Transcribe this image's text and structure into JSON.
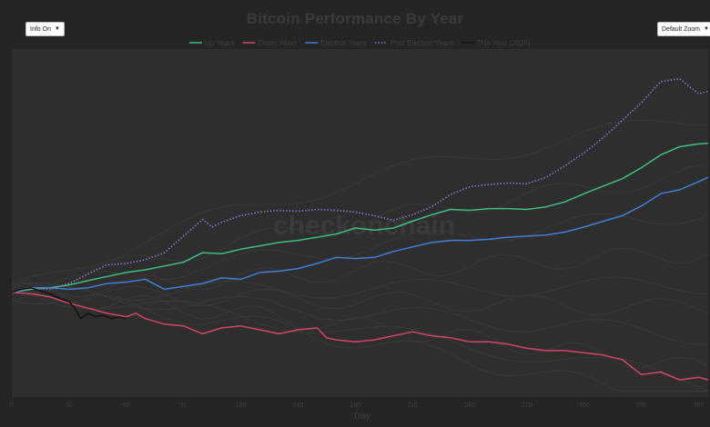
{
  "controls": {
    "info_label": "Info On",
    "zoom_label": "Default Zoom"
  },
  "watermark": "checkonchain",
  "colors": {
    "background": "#252525",
    "plot_background": "#2e2e2e",
    "up": "#3dbf7f",
    "down": "#d2456a",
    "election": "#3f7fd6",
    "post_election": "#8a72c9",
    "this_year": "#111111",
    "history": "#383838"
  },
  "chart_data": {
    "type": "line",
    "title": "Bitcoin Performance By Year",
    "xlabel": "Day",
    "ylabel": "",
    "xlim": [
      0,
      365
    ],
    "x_ticks": [
      0,
      30,
      60,
      90,
      120,
      150,
      180,
      210,
      240,
      270,
      300,
      330,
      360
    ],
    "y_scale": "log",
    "legend_position": "top-center",
    "grid": false,
    "legend": [
      "Up Years",
      "Down Years",
      "Election Years",
      "Post Election Years",
      "This Year (2026)"
    ],
    "series": [
      {
        "name": "Up Years",
        "color": "#3dbf7f",
        "style": "solid",
        "points": [
          [
            0,
            1.0
          ],
          [
            10,
            1.02
          ],
          [
            20,
            1.03
          ],
          [
            30,
            1.05
          ],
          [
            40,
            1.08
          ],
          [
            50,
            1.11
          ],
          [
            60,
            1.14
          ],
          [
            70,
            1.16
          ],
          [
            80,
            1.19
          ],
          [
            90,
            1.22
          ],
          [
            100,
            1.3
          ],
          [
            110,
            1.29
          ],
          [
            120,
            1.33
          ],
          [
            130,
            1.36
          ],
          [
            140,
            1.39
          ],
          [
            150,
            1.41
          ],
          [
            160,
            1.44
          ],
          [
            170,
            1.47
          ],
          [
            180,
            1.53
          ],
          [
            190,
            1.51
          ],
          [
            200,
            1.53
          ],
          [
            210,
            1.6
          ],
          [
            220,
            1.67
          ],
          [
            230,
            1.73
          ],
          [
            240,
            1.72
          ],
          [
            250,
            1.74
          ],
          [
            260,
            1.74
          ],
          [
            270,
            1.73
          ],
          [
            280,
            1.76
          ],
          [
            290,
            1.82
          ],
          [
            300,
            1.92
          ],
          [
            310,
            2.02
          ],
          [
            320,
            2.12
          ],
          [
            330,
            2.28
          ],
          [
            340,
            2.48
          ],
          [
            350,
            2.62
          ],
          [
            360,
            2.67
          ],
          [
            365,
            2.68
          ]
        ]
      },
      {
        "name": "Down Years",
        "color": "#d2456a",
        "style": "solid",
        "points": [
          [
            0,
            1.0
          ],
          [
            10,
            0.99
          ],
          [
            20,
            0.97
          ],
          [
            30,
            0.93
          ],
          [
            40,
            0.9
          ],
          [
            50,
            0.87
          ],
          [
            60,
            0.85
          ],
          [
            65,
            0.87
          ],
          [
            70,
            0.84
          ],
          [
            80,
            0.81
          ],
          [
            90,
            0.8
          ],
          [
            100,
            0.76
          ],
          [
            110,
            0.79
          ],
          [
            120,
            0.8
          ],
          [
            130,
            0.78
          ],
          [
            140,
            0.76
          ],
          [
            150,
            0.78
          ],
          [
            160,
            0.79
          ],
          [
            165,
            0.74
          ],
          [
            170,
            0.73
          ],
          [
            180,
            0.72
          ],
          [
            190,
            0.73
          ],
          [
            200,
            0.75
          ],
          [
            210,
            0.77
          ],
          [
            220,
            0.75
          ],
          [
            230,
            0.74
          ],
          [
            240,
            0.72
          ],
          [
            250,
            0.72
          ],
          [
            260,
            0.71
          ],
          [
            270,
            0.69
          ],
          [
            280,
            0.68
          ],
          [
            290,
            0.68
          ],
          [
            300,
            0.67
          ],
          [
            310,
            0.66
          ],
          [
            320,
            0.64
          ],
          [
            330,
            0.58
          ],
          [
            340,
            0.59
          ],
          [
            350,
            0.56
          ],
          [
            360,
            0.57
          ],
          [
            365,
            0.56
          ]
        ]
      },
      {
        "name": "Election Years",
        "color": "#3f7fd6",
        "style": "solid",
        "points": [
          [
            0,
            1.0
          ],
          [
            10,
            1.03
          ],
          [
            20,
            1.03
          ],
          [
            30,
            1.02
          ],
          [
            40,
            1.03
          ],
          [
            50,
            1.06
          ],
          [
            60,
            1.07
          ],
          [
            70,
            1.09
          ],
          [
            80,
            1.02
          ],
          [
            90,
            1.04
          ],
          [
            100,
            1.06
          ],
          [
            110,
            1.1
          ],
          [
            120,
            1.09
          ],
          [
            130,
            1.14
          ],
          [
            140,
            1.15
          ],
          [
            150,
            1.17
          ],
          [
            160,
            1.21
          ],
          [
            170,
            1.26
          ],
          [
            180,
            1.25
          ],
          [
            190,
            1.26
          ],
          [
            200,
            1.31
          ],
          [
            210,
            1.35
          ],
          [
            220,
            1.39
          ],
          [
            230,
            1.41
          ],
          [
            240,
            1.41
          ],
          [
            250,
            1.42
          ],
          [
            260,
            1.44
          ],
          [
            270,
            1.45
          ],
          [
            280,
            1.46
          ],
          [
            290,
            1.49
          ],
          [
            300,
            1.54
          ],
          [
            310,
            1.6
          ],
          [
            320,
            1.66
          ],
          [
            330,
            1.77
          ],
          [
            340,
            1.92
          ],
          [
            350,
            1.97
          ],
          [
            360,
            2.08
          ],
          [
            365,
            2.14
          ]
        ]
      },
      {
        "name": "Post Election Years",
        "color": "#8a72c9",
        "style": "dotted",
        "points": [
          [
            0,
            1.0
          ],
          [
            10,
            1.03
          ],
          [
            20,
            1.02
          ],
          [
            30,
            1.06
          ],
          [
            40,
            1.13
          ],
          [
            50,
            1.2
          ],
          [
            60,
            1.21
          ],
          [
            70,
            1.24
          ],
          [
            80,
            1.3
          ],
          [
            90,
            1.45
          ],
          [
            100,
            1.62
          ],
          [
            105,
            1.54
          ],
          [
            110,
            1.59
          ],
          [
            120,
            1.66
          ],
          [
            130,
            1.7
          ],
          [
            140,
            1.72
          ],
          [
            150,
            1.71
          ],
          [
            160,
            1.73
          ],
          [
            170,
            1.72
          ],
          [
            180,
            1.7
          ],
          [
            190,
            1.66
          ],
          [
            200,
            1.61
          ],
          [
            210,
            1.67
          ],
          [
            220,
            1.76
          ],
          [
            230,
            1.91
          ],
          [
            240,
            2.01
          ],
          [
            250,
            2.04
          ],
          [
            260,
            2.06
          ],
          [
            270,
            2.05
          ],
          [
            280,
            2.14
          ],
          [
            290,
            2.31
          ],
          [
            300,
            2.52
          ],
          [
            310,
            2.78
          ],
          [
            320,
            3.12
          ],
          [
            330,
            3.51
          ],
          [
            340,
            4.03
          ],
          [
            350,
            4.11
          ],
          [
            360,
            3.72
          ],
          [
            365,
            3.78
          ]
        ]
      },
      {
        "name": "This Year (2026)",
        "color": "#111111",
        "style": "solid",
        "points": [
          [
            0,
            1.0
          ],
          [
            5,
            1.02
          ],
          [
            10,
            1.03
          ],
          [
            15,
            1.01
          ],
          [
            20,
            0.99
          ],
          [
            25,
            0.96
          ],
          [
            30,
            0.94
          ],
          [
            33,
            0.9
          ],
          [
            36,
            0.84
          ],
          [
            40,
            0.87
          ],
          [
            44,
            0.85
          ],
          [
            48,
            0.86
          ],
          [
            52,
            0.84
          ],
          [
            56,
            0.85
          ],
          [
            60,
            0.84
          ]
        ]
      }
    ]
  }
}
